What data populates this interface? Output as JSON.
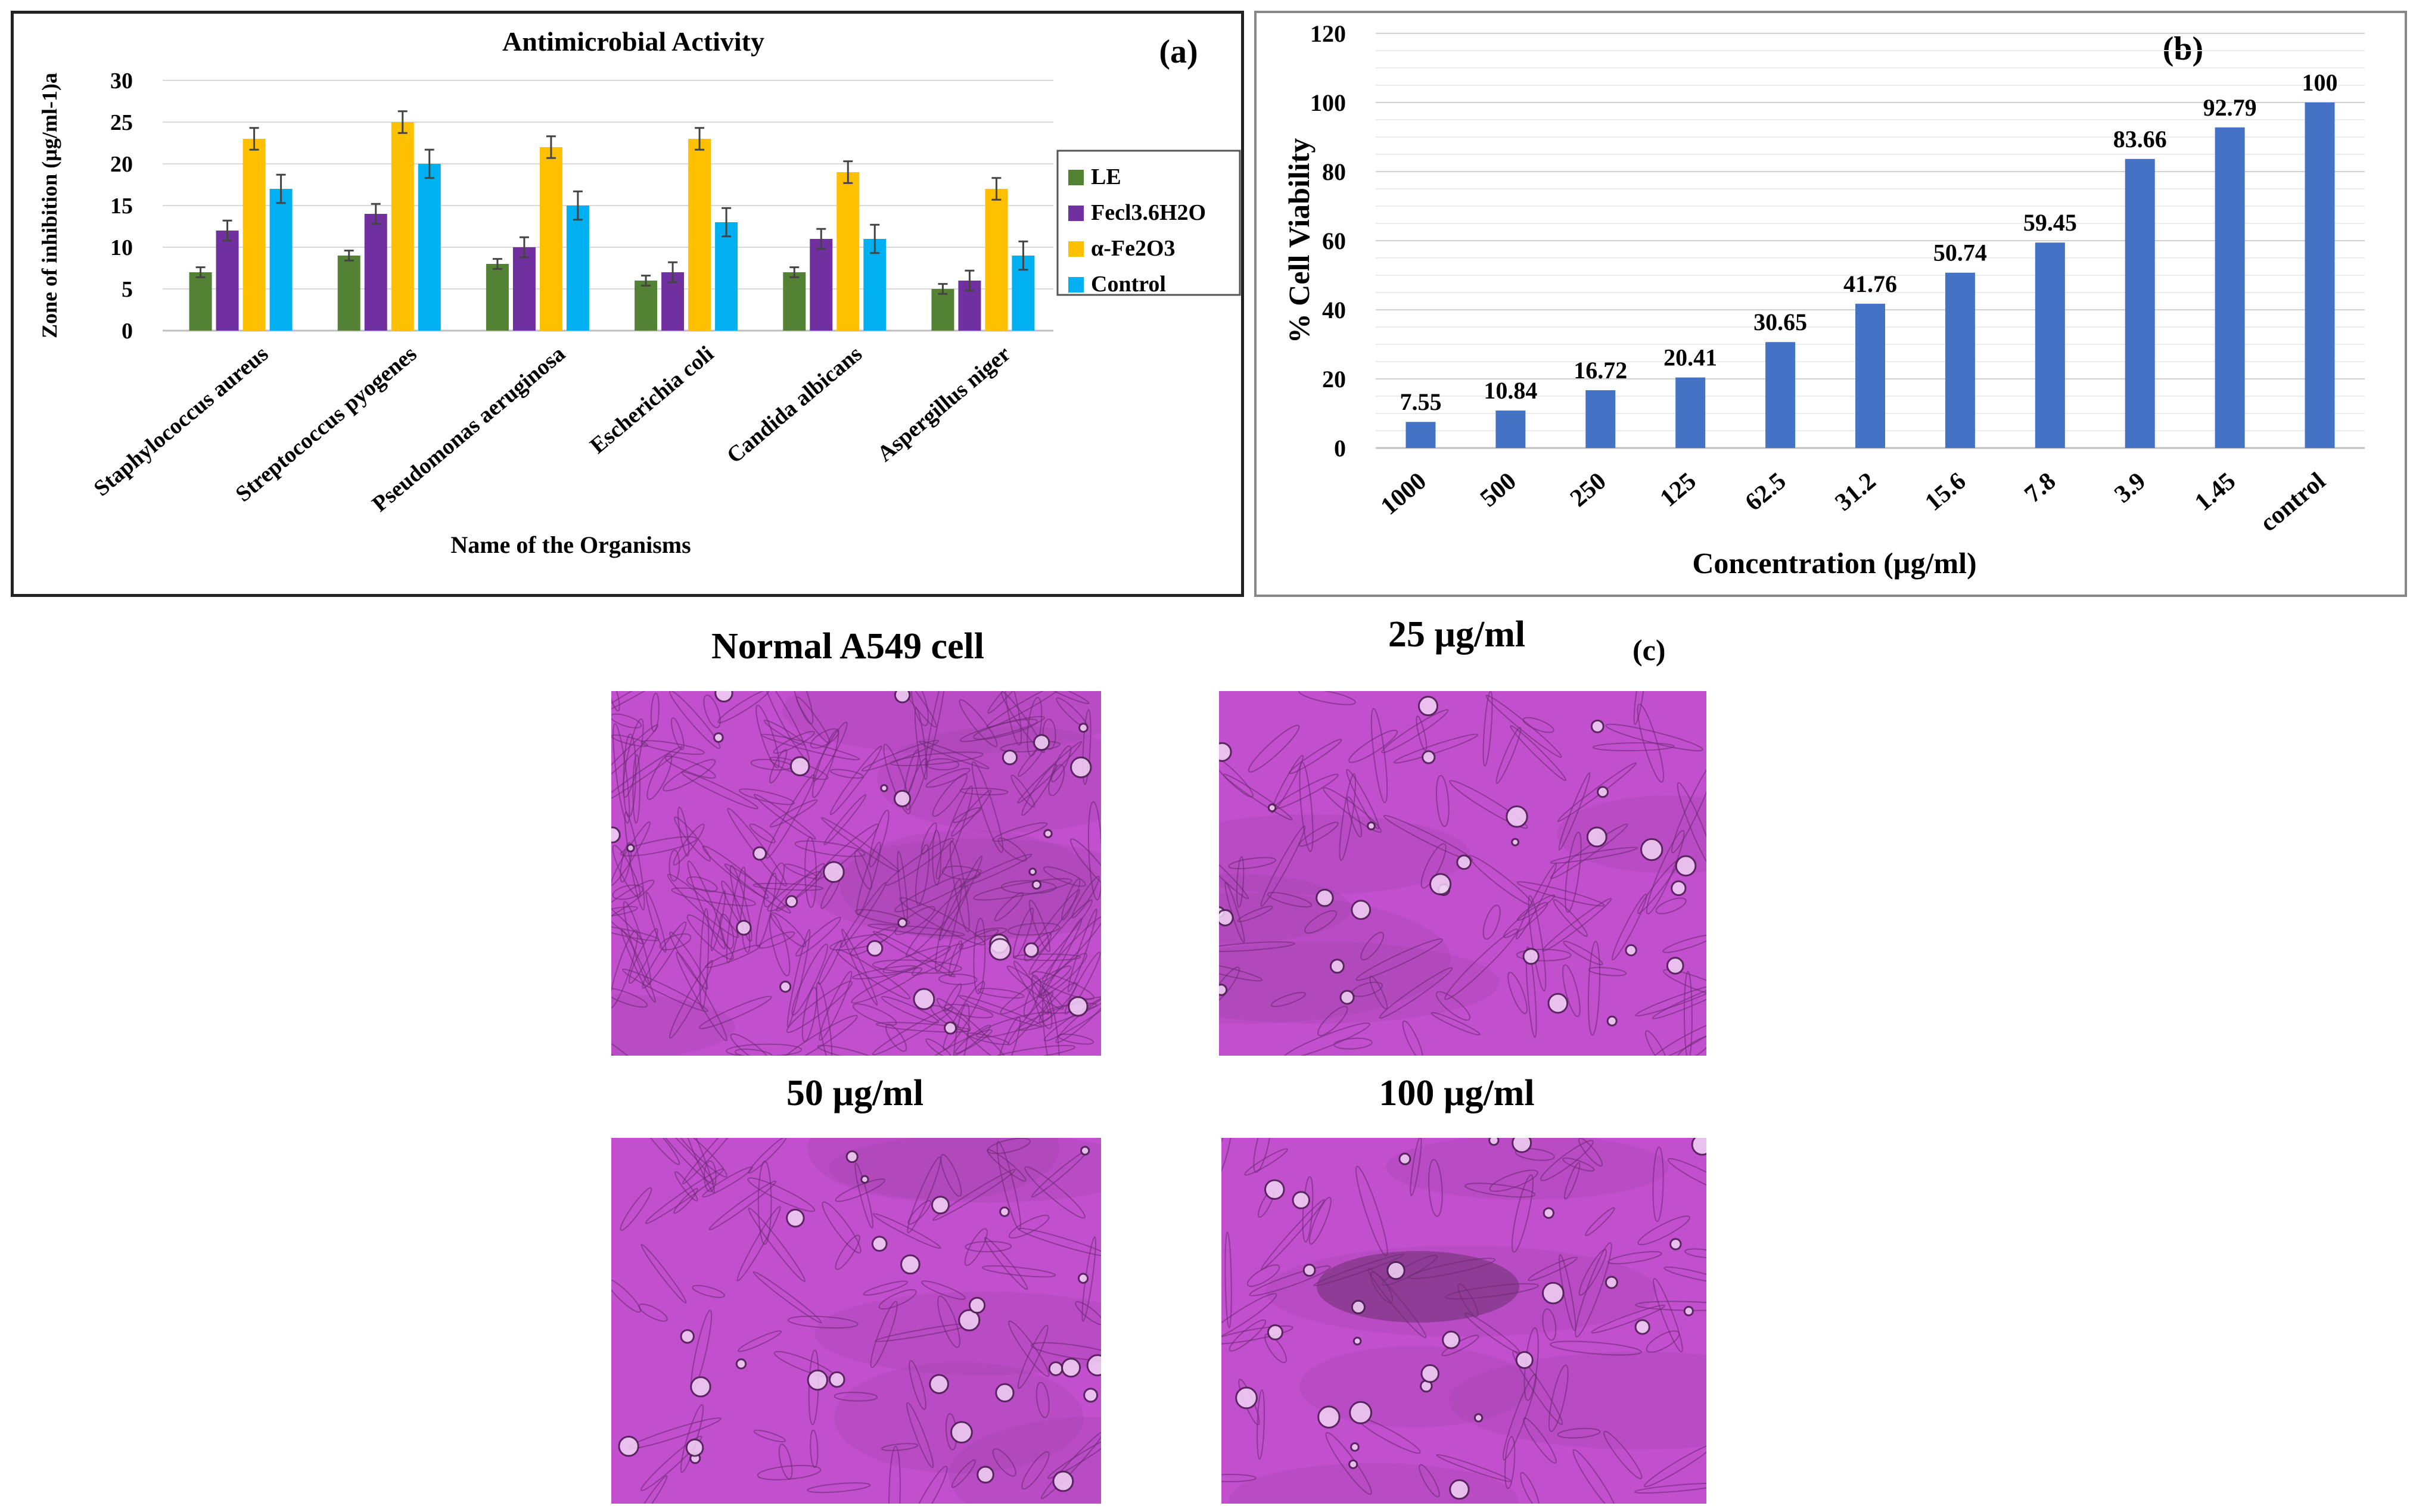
{
  "colors": {
    "LE": "#548235",
    "Fecl3": "#7030A0",
    "aFe2O3": "#FFC000",
    "Control": "#00B0F0",
    "bar_b": "#4472C4",
    "micro_base": "#c24fce"
  },
  "chart_data": [
    {
      "type": "bar",
      "panel_label": "(a)",
      "title": "Antimicrobial Activity",
      "xlabel": "Name of the Organisms",
      "ylabel": "Zone of inhibition (µg/ml-1)a",
      "ylim": [
        0,
        30
      ],
      "yticks": [
        "0",
        "5",
        "10",
        "15",
        "20",
        "25",
        "30"
      ],
      "categories": [
        "Staphylococcus aureus",
        "Streptococcus pyogenes",
        "Pseudomonas aeruginosa",
        "Escherichia coli",
        "Candida albicans",
        "Aspergillus niger"
      ],
      "series": [
        {
          "name": "LE",
          "values": [
            7,
            9,
            8,
            6,
            7,
            5
          ],
          "errors": [
            0.6,
            0.6,
            0.6,
            0.6,
            0.6,
            0.6
          ]
        },
        {
          "name": "Fecl3.6H2O",
          "values": [
            12,
            14,
            10,
            7,
            11,
            6
          ],
          "errors": [
            1.2,
            1.2,
            1.2,
            1.2,
            1.2,
            1.2
          ]
        },
        {
          "name": "α-Fe2O3",
          "values": [
            23,
            25,
            22,
            23,
            19,
            17
          ],
          "errors": [
            1.3,
            1.3,
            1.3,
            1.3,
            1.3,
            1.3
          ]
        },
        {
          "name": "Control",
          "values": [
            17,
            20,
            15,
            13,
            11,
            9
          ],
          "errors": [
            1.7,
            1.7,
            1.7,
            1.7,
            1.7,
            1.7
          ]
        }
      ],
      "legend": "right",
      "grid": true
    },
    {
      "type": "bar",
      "panel_label": "(b)",
      "xlabel": "Concentration (µg/ml)",
      "ylabel": "% Cell Viability",
      "ylim": [
        0,
        120
      ],
      "yticks": [
        "0",
        "20",
        "40",
        "60",
        "80",
        "100",
        "120"
      ],
      "categories": [
        "1000",
        "500",
        "250",
        "125",
        "62.5",
        "31.2",
        "15.6",
        "7.8",
        "3.9",
        "1.45",
        "control"
      ],
      "values": [
        7.55,
        10.84,
        16.72,
        20.41,
        30.65,
        41.76,
        50.74,
        59.45,
        83.66,
        92.79,
        100
      ],
      "value_labels": [
        "7.55",
        "10.84",
        "16.72",
        "20.41",
        "30.65",
        "41.76",
        "50.74",
        "59.45",
        "83.66",
        "92.79",
        "100"
      ],
      "grid": true
    }
  ],
  "micrographs": {
    "panel_label": "(c)",
    "titles": [
      "Normal A549 cell",
      "25 µg/ml",
      "50 µg/ml",
      "100 µg/ml"
    ]
  }
}
